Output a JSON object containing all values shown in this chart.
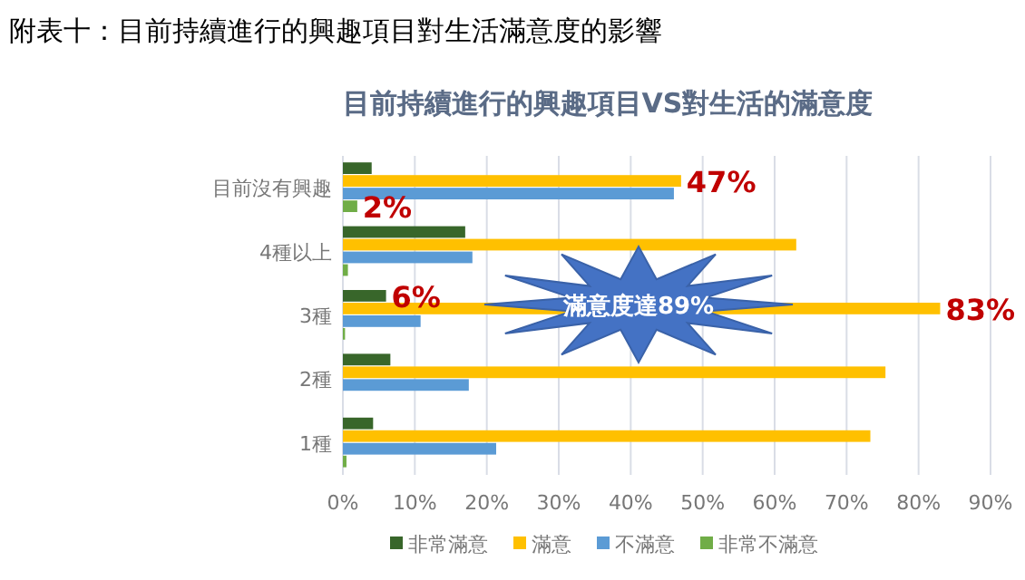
{
  "chart_data": {
    "type": "bar",
    "orientation": "horizontal",
    "title": "目前持續進行的興趣項目VS對生活的滿意度",
    "annotations": [
      "附表十：目前持續進行的興趣項目對生活滿意度的影響",
      "滿意度達89%"
    ],
    "categories": [
      "目前沒有興趣",
      "4種以上",
      "3種",
      "2種",
      "1種"
    ],
    "series": [
      {
        "name": "非常滿意",
        "color": "#38662a",
        "values": [
          4,
          17,
          6,
          6.6,
          4.2
        ],
        "value_labels": [
          null,
          null,
          "6%",
          null,
          null
        ]
      },
      {
        "name": "滿意",
        "color": "#ffc000",
        "values": [
          47,
          63,
          83,
          75.4,
          73.3
        ],
        "value_labels": [
          "47%",
          null,
          "83%",
          null,
          null
        ]
      },
      {
        "name": "不滿意",
        "color": "#5b9bd5",
        "values": [
          46,
          18,
          10.8,
          17.5,
          21.3
        ]
      },
      {
        "name": "非常不滿意",
        "color": "#70ad47",
        "values": [
          2,
          0.7,
          0.3,
          0,
          0.5
        ],
        "value_labels": [
          "2%",
          null,
          null,
          null,
          null
        ]
      }
    ],
    "xlim": [
      0,
      90
    ],
    "xticks": [
      {
        "value": 0,
        "label": "0%"
      },
      {
        "value": 10,
        "label": "10%"
      },
      {
        "value": 20,
        "label": "20%"
      },
      {
        "value": 30,
        "label": "30%"
      },
      {
        "value": 40,
        "label": "40%"
      },
      {
        "value": 50,
        "label": "50%"
      },
      {
        "value": 60,
        "label": "60%"
      },
      {
        "value": 70,
        "label": "70%"
      },
      {
        "value": 80,
        "label": "80%"
      },
      {
        "value": 90,
        "label": "90%"
      }
    ],
    "grid": "x",
    "legend": "bottom"
  }
}
